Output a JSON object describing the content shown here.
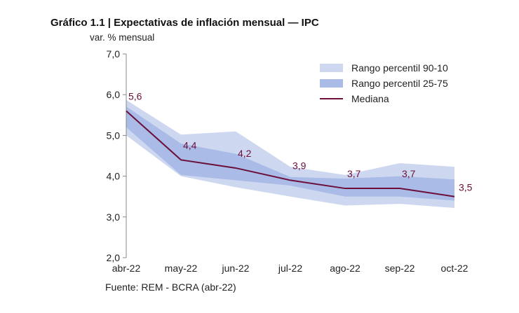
{
  "title": "Gráfico 1.1 | Expectativas de inflación mensual — IPC",
  "source": "Fuente: REM - BCRA (abr-22)",
  "chart_data": {
    "type": "area",
    "title": "Gráfico 1.1 | Expectativas de inflación mensual — IPC",
    "ylabel": "var. % mensual",
    "xlabel": "",
    "ylim": [
      2.0,
      7.0
    ],
    "yticks": [
      "2,0",
      "3,0",
      "4,0",
      "5,0",
      "6,0",
      "7,0"
    ],
    "categories": [
      "abr-22",
      "may-22",
      "jun-22",
      "jul-22",
      "ago-22",
      "sep-22",
      "oct-22"
    ],
    "grid": false,
    "legend_position": "top-right",
    "series": [
      {
        "name": "Rango percentil 90-10",
        "kind": "band",
        "color": "#cdd8f0",
        "low": [
          5.0,
          4.0,
          3.73,
          3.5,
          3.28,
          3.32,
          3.22
        ],
        "high": [
          5.87,
          5.02,
          5.1,
          4.23,
          4.03,
          4.32,
          4.23
        ]
      },
      {
        "name": "Rango percentil 25-75",
        "kind": "band",
        "color": "#a9bbe6",
        "low": [
          5.2,
          4.03,
          3.9,
          3.77,
          3.5,
          3.5,
          3.4
        ],
        "high": [
          5.71,
          4.8,
          4.55,
          3.98,
          3.94,
          4.0,
          3.92
        ]
      },
      {
        "name": "Mediana",
        "kind": "line",
        "color": "#6b0f3a",
        "values": [
          5.6,
          4.4,
          4.2,
          3.9,
          3.7,
          3.7,
          3.5
        ],
        "labels": [
          "5,6",
          "4,4",
          "4,2",
          "3,9",
          "3,7",
          "3,7",
          "3,5"
        ]
      }
    ]
  }
}
